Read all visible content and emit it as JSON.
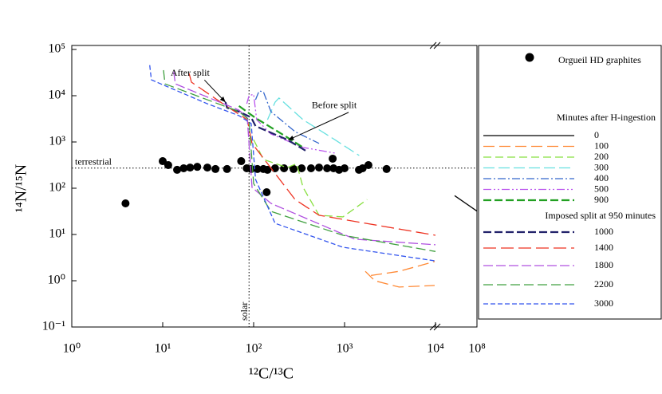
{
  "chart_data": {
    "type": "line",
    "xlabel": "¹²C/¹³C",
    "ylabel": "¹⁴N/¹⁵N",
    "xscale": "log",
    "yscale": "log",
    "xlim": [
      1,
      100000000
    ],
    "x_break": 10000,
    "ylim": [
      0.1,
      100000
    ],
    "xticks": [
      {
        "value": 1,
        "label": "10⁰"
      },
      {
        "value": 10,
        "label": "10¹"
      },
      {
        "value": 100,
        "label": "10²"
      },
      {
        "value": 1000,
        "label": "10³"
      },
      {
        "value": 10000,
        "label": "10⁴"
      },
      {
        "value": 100000000,
        "label": "10⁸"
      }
    ],
    "yticks": [
      {
        "value": 0.1,
        "label": "10⁻¹"
      },
      {
        "value": 1,
        "label": "10⁰"
      },
      {
        "value": 10,
        "label": "10¹"
      },
      {
        "value": 100,
        "label": "10²"
      },
      {
        "value": 1000,
        "label": "10³"
      },
      {
        "value": 10000,
        "label": "10⁴"
      },
      {
        "value": 100000,
        "label": "10⁵"
      }
    ],
    "hlines": [
      {
        "value": 272,
        "label": "terrestrial"
      }
    ],
    "vlines": [
      {
        "value": 89,
        "label": "solar"
      }
    ],
    "annotations": [
      {
        "text": "After split",
        "x": 20,
        "y": 30000,
        "arrow_x": 49,
        "arrow_y": 7250
      },
      {
        "text": "Before split",
        "x": 770,
        "y": 6000,
        "arrow_x": 240,
        "arrow_y": 1100
      }
    ],
    "legend_headings": [
      "Minutes after H-ingestion",
      "Imposed split at 950 minutes"
    ],
    "series": [
      {
        "name": "Orgueil HD graphites",
        "type": "scatter",
        "color": "#000000",
        "x": [
          3.9,
          10,
          11.5,
          14.4,
          17,
          20,
          24,
          31,
          38,
          51,
          73,
          84,
          94,
          110,
          128,
          142,
          172,
          216,
          275,
          337,
          428,
          524,
          643,
          756,
          870,
          1000,
          740,
          139,
          1440,
          1580,
          1830,
          2900
        ],
        "values": [
          47,
          385,
          316,
          250,
          270,
          280,
          290,
          280,
          260,
          260,
          385,
          270,
          260,
          260,
          260,
          250,
          270,
          270,
          260,
          270,
          270,
          280,
          270,
          270,
          250,
          270,
          435,
          82,
          250,
          270,
          316,
          260
        ]
      },
      {
        "name": "0",
        "color": "#000000",
        "dash": "none",
        "width": 1.3,
        "x": [
          575000,
          100000000
        ],
        "values": [
          69,
          32
        ]
      },
      {
        "name": "100",
        "color": "#ff8833",
        "dash": "14 6",
        "width": 1.3,
        "x": [
          1690,
          2150,
          3970,
          9800,
          null,
          1950,
          3970,
          9800
        ],
        "values": [
          1.6,
          1.0,
          0.73,
          0.79,
          null,
          1.3,
          1.6,
          2.6
        ]
      },
      {
        "name": "200",
        "color": "#88e040",
        "dash": "10 5",
        "width": 1.3,
        "x": [
          100,
          128,
          234,
          297,
          350,
          524,
          960,
          1770
        ],
        "values": [
          1120,
          420,
          280,
          340,
          104,
          26,
          24,
          57
        ]
      },
      {
        "name": "300",
        "color": "#66e0e0",
        "dash": "14 5",
        "width": 1.3,
        "x": [
          142,
          172,
          190,
          350,
          780,
          1450
        ],
        "values": [
          3030,
          7250,
          8900,
          3030,
          1120,
          510
        ]
      },
      {
        "name": "400",
        "color": "#3366cc",
        "dash": "10 3 2 3",
        "width": 1.3,
        "x": [
          105,
          115,
          128,
          155,
          286,
          524
        ],
        "values": [
          8200,
          12700,
          12200,
          4540,
          1670,
          930
        ]
      },
      {
        "name": "500",
        "color": "#bb55ee",
        "dash": "10 3 2 3 2 3",
        "width": 1.3,
        "x": [
          84,
          89,
          100,
          108,
          155,
          350,
          780
        ],
        "values": [
          6700,
          10000,
          10800,
          3030,
          1490,
          760,
          575
        ]
      },
      {
        "name": "900",
        "color": "#22a022",
        "dash": "10 4",
        "width": 2.2,
        "x": [
          69,
          105,
          234,
          350
        ],
        "values": [
          6000,
          3300,
          1260,
          760
        ]
      },
      {
        "name": "1000",
        "color": "#22226a",
        "dash": "10 4",
        "width": 2.2,
        "x": [
          49,
          51,
          69,
          94,
          105,
          234,
          386
        ],
        "values": [
          7250,
          5500,
          4540,
          3400,
          2200,
          1120,
          620
        ]
      },
      {
        "name": "1400",
        "color": "#ee3322",
        "dash": "16 6",
        "width": 1.3,
        "x": [
          19.5,
          20.7,
          46,
          85,
          96,
          286,
          524,
          10000
        ],
        "values": [
          30400,
          19600,
          6700,
          3030,
          930,
          57,
          26,
          9.6
        ]
      },
      {
        "name": "1800",
        "color": "#b050e0",
        "dash": "12 4",
        "width": 1.3,
        "x": [
          13.2,
          13.8,
          69,
          85,
          96,
          155,
          1300,
          10000
        ],
        "values": [
          33000,
          18000,
          4900,
          3300,
          104,
          47,
          7.9,
          6.0
        ]
      },
      {
        "name": "2200",
        "color": "#40a040",
        "dash": "12 5",
        "width": 1.3,
        "x": [
          10.2,
          10.6,
          69,
          89,
          100,
          155,
          960,
          10000
        ],
        "values": [
          35600,
          18000,
          4540,
          3030,
          126,
          31.6,
          9.6,
          4.3
        ]
      },
      {
        "name": "3000",
        "color": "#3355ee",
        "dash": "6 3",
        "width": 1.3,
        "x": [
          7.2,
          7.5,
          31,
          69,
          94,
          105,
          172,
          960,
          9800
        ],
        "values": [
          45700,
          22000,
          6700,
          3700,
          2500,
          155,
          17.4,
          5.3,
          2.7
        ]
      }
    ]
  }
}
